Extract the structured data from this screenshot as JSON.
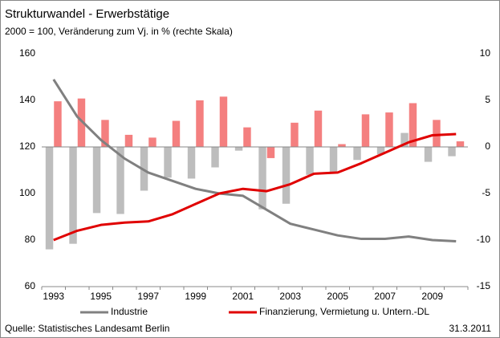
{
  "chart_data": {
    "type": "bar_line",
    "title": "Strukturwandel - Erwerbstätige",
    "subtitle": "2000 = 100, Veränderung zum Vj. in % (rechte Skala)",
    "categories": [
      "1993",
      null,
      "1995",
      null,
      "1997",
      null,
      "1999",
      null,
      "2001",
      null,
      "2003",
      null,
      "2005",
      null,
      "2007",
      null,
      "2009",
      null
    ],
    "series": [
      {
        "name": "Industrie",
        "color": "#808080",
        "bar_color": "#bdbdbd",
        "values": [
          149,
          133,
          123,
          115,
          109,
          105.5,
          102,
          100,
          99,
          93,
          87,
          84.5,
          82,
          80.5,
          80.5,
          81.5,
          80,
          79.5
        ],
        "change": [
          -11.0,
          -10.4,
          -7.1,
          -7.2,
          -4.7,
          -3.3,
          -3.4,
          -2.2,
          -0.4,
          -6.7,
          -6.1,
          -3.0,
          -2.8,
          -1.4,
          -0.8,
          1.5,
          -1.6,
          -1.0
        ]
      },
      {
        "name": "Finanzierung, Vermietung u. Untern.-DL",
        "color": "#e00000",
        "bar_color": "#f47f7f",
        "values": [
          80,
          84,
          86.5,
          87.5,
          88,
          91,
          95.5,
          100,
          102,
          101,
          104,
          108.5,
          109,
          113,
          117.5,
          122,
          125,
          125.5
        ],
        "change": [
          4.9,
          5.2,
          2.9,
          1.3,
          1.0,
          2.8,
          5.0,
          5.4,
          2.1,
          -1.2,
          2.6,
          3.9,
          0.3,
          3.5,
          3.7,
          4.7,
          2.9,
          0.6
        ]
      }
    ],
    "ylim": [
      60,
      160
    ],
    "yticks": [
      60,
      80,
      100,
      120,
      140,
      160
    ],
    "y2lim": [
      -15,
      10
    ],
    "y2ticks": [
      -15,
      -10,
      -5,
      0,
      5,
      10
    ],
    "grid": false,
    "source": "Quelle: Statistisches Landesamt Berlin",
    "date": "31.3.2011"
  }
}
